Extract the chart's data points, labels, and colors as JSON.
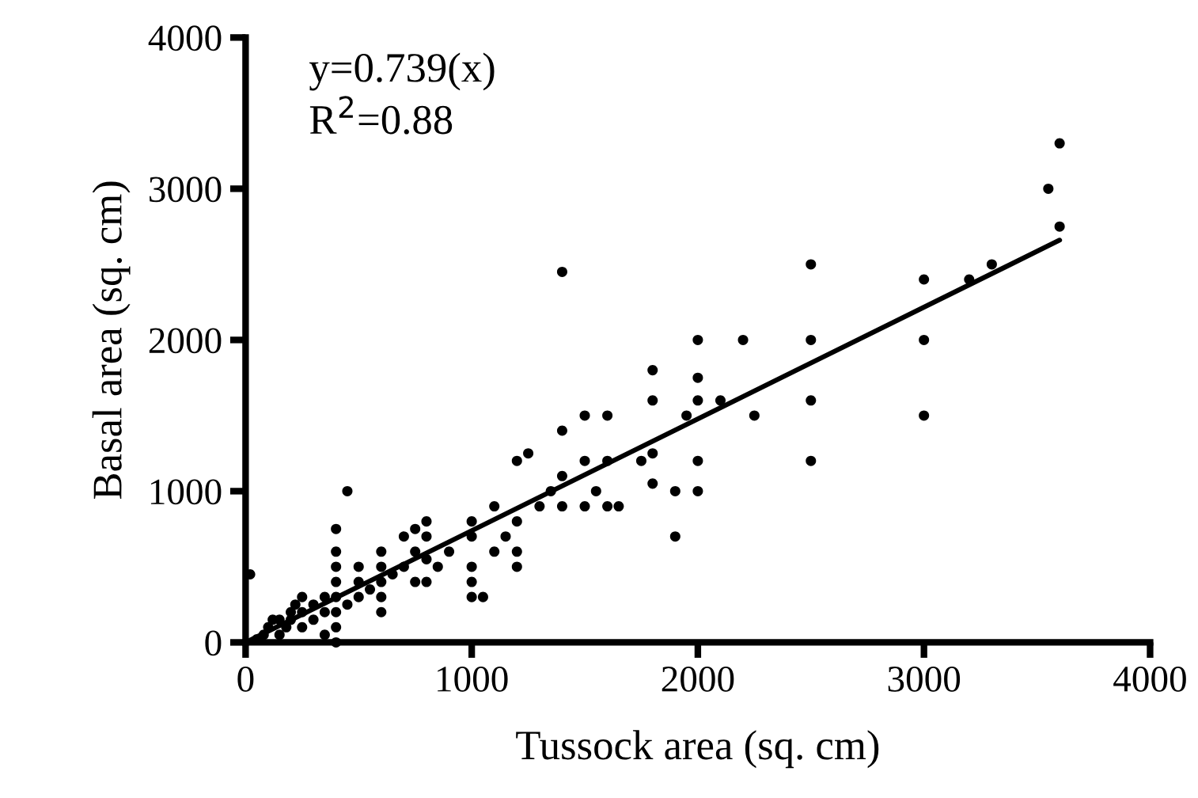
{
  "chart_data": {
    "type": "scatter",
    "xlabel": "Tussock area (sq. cm)",
    "ylabel": "Basal area (sq. cm)",
    "annotations": [
      "y=0.739(x)",
      "R$^{2}$=0.88"
    ],
    "xlim": [
      0,
      4000
    ],
    "ylim": [
      0,
      4000
    ],
    "xticks": [
      0,
      1000,
      2000,
      3000,
      4000
    ],
    "yticks": [
      0,
      1000,
      2000,
      3000,
      4000
    ],
    "grid": false,
    "legend": false,
    "marker": "circle",
    "series": [
      {
        "color": "#000000",
        "x": [
          20,
          50,
          80,
          100,
          120,
          150,
          150,
          180,
          200,
          200,
          220,
          250,
          250,
          250,
          300,
          300,
          350,
          350,
          350,
          400,
          400,
          400,
          400,
          400,
          400,
          400,
          400,
          450,
          450,
          500,
          500,
          500,
          550,
          600,
          600,
          600,
          600,
          600,
          650,
          700,
          700,
          750,
          750,
          750,
          800,
          800,
          800,
          800,
          850,
          900,
          1000,
          1000,
          1000,
          1000,
          1000,
          1050,
          1100,
          1100,
          1150,
          1200,
          1200,
          1200,
          1200,
          1250,
          1300,
          1350,
          1400,
          1400,
          1400,
          1400,
          1500,
          1500,
          1500,
          1550,
          1600,
          1600,
          1600,
          1650,
          1750,
          1800,
          1800,
          1800,
          1800,
          1900,
          1900,
          1950,
          2000,
          2000,
          2000,
          2000,
          2000,
          2100,
          2200,
          2250,
          2500,
          2500,
          2500,
          2500,
          3000,
          3000,
          3000,
          3200,
          3300,
          3600,
          3550,
          3600
        ],
        "values": [
          450,
          20,
          50,
          100,
          150,
          50,
          150,
          100,
          150,
          200,
          250,
          100,
          200,
          300,
          150,
          250,
          50,
          200,
          300,
          100,
          200,
          300,
          400,
          500,
          600,
          750,
          0,
          1000,
          250,
          300,
          400,
          500,
          350,
          200,
          300,
          400,
          500,
          600,
          450,
          500,
          700,
          400,
          600,
          750,
          400,
          550,
          700,
          800,
          500,
          600,
          300,
          400,
          500,
          700,
          800,
          300,
          600,
          900,
          700,
          500,
          600,
          800,
          1200,
          1250,
          900,
          1000,
          900,
          1100,
          1400,
          2450,
          900,
          1200,
          1500,
          1000,
          900,
          1200,
          1500,
          900,
          1200,
          1600,
          1800,
          1250,
          1050,
          700,
          1000,
          1500,
          1200,
          1000,
          1600,
          1750,
          2000,
          1600,
          2000,
          1500,
          1200,
          1600,
          2000,
          2500,
          1500,
          2000,
          2400,
          2400,
          2500,
          2750,
          3000,
          3300
        ]
      },
      {
        "type": "line",
        "color": "#000000",
        "marker": "none",
        "line_style": "solid",
        "x": [
          0,
          3600
        ],
        "values": [
          0,
          2660
        ]
      }
    ]
  }
}
